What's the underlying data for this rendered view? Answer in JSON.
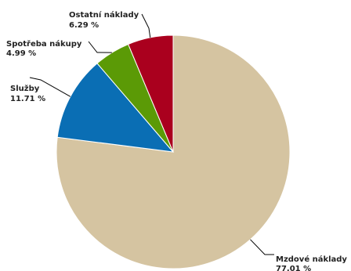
{
  "chart_data": {
    "type": "pie",
    "title": "",
    "start_angle_deg": 0,
    "direction": "clockwise",
    "slices": [
      {
        "name": "Mzdové náklady",
        "value": 77.01,
        "label": "77.01 %",
        "color": "#d5c4a1"
      },
      {
        "name": "Služby",
        "value": 11.71,
        "label": "11.71 %",
        "color": "#0a6eb4"
      },
      {
        "name": "Spotřeba nákupy",
        "value": 4.99,
        "label": "4.99 %",
        "color": "#5b9a06"
      },
      {
        "name": "Ostatní náklady",
        "value": 6.29,
        "label": "6.29 %",
        "color": "#aa001e"
      }
    ]
  }
}
